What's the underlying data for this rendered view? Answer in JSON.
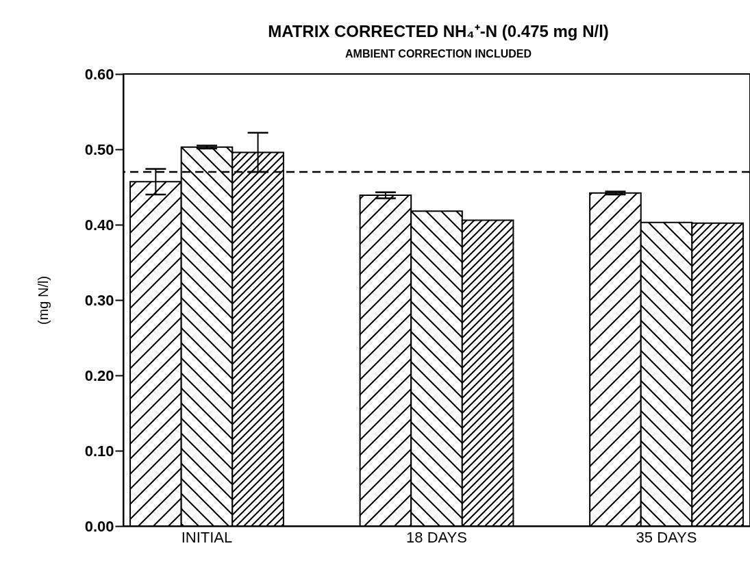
{
  "chart_data": {
    "type": "bar",
    "title": "MATRIX CORRECTED NH₄⁺-N (0.475 mg N/l)",
    "subtitle": "AMBIENT CORRECTION INCLUDED",
    "ylabel": "(mg N/l)",
    "categories": [
      "INITIAL",
      "18 DAYS",
      "35 DAYS"
    ],
    "series": [
      {
        "color": "#000000",
        "values": [
          0.457,
          0.439,
          0.442
        ],
        "errors": [
          0.017,
          0.004,
          0.002
        ]
      },
      {
        "color": "#000000",
        "values": [
          0.503,
          0.418,
          0.403
        ],
        "errors": [
          0.002,
          null,
          null
        ]
      },
      {
        "color": "#000000",
        "values": [
          0.496,
          0.406,
          0.402
        ],
        "errors": [
          0.026,
          null,
          null
        ]
      }
    ],
    "ylim": [
      0,
      0.6
    ],
    "yticks": [
      {
        "value": 0,
        "label": "0.00"
      },
      {
        "value": 0.1,
        "label": "0.10"
      },
      {
        "value": 0.2,
        "label": "0.20"
      },
      {
        "value": 0.3,
        "label": "0.30"
      },
      {
        "value": 0.4,
        "label": "0.40"
      },
      {
        "value": 0.5,
        "label": "0.50"
      },
      {
        "value": 0.6,
        "label": "0.60"
      }
    ],
    "ref_lines": [
      {
        "axis": "y",
        "value": 0.47,
        "line_style": "dashed"
      }
    ],
    "grid": false,
    "legend": false
  }
}
